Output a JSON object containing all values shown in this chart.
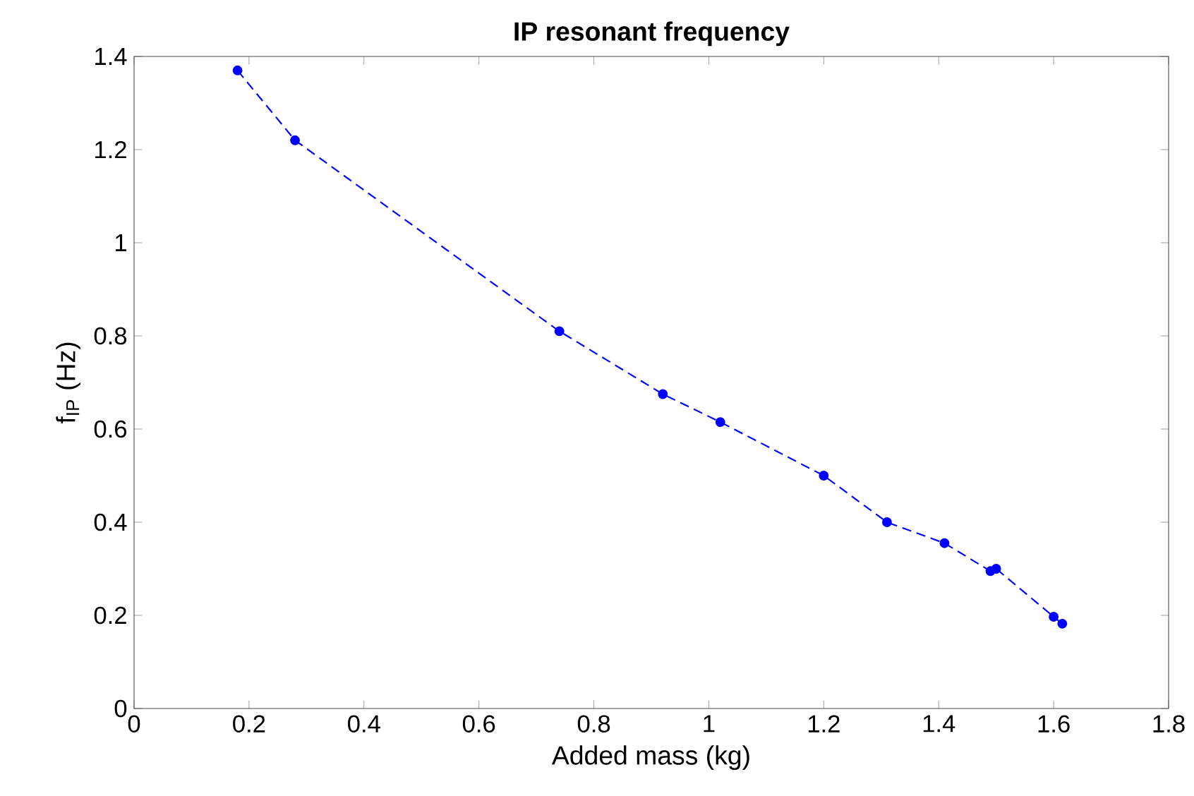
{
  "chart_data": {
    "type": "line",
    "title": "IP resonant frequency",
    "xlabel": "Added mass (kg)",
    "ylabel": "f$_{IP}$ (Hz)",
    "x": [
      0.18,
      0.28,
      0.74,
      0.92,
      1.02,
      1.2,
      1.31,
      1.41,
      1.49,
      1.5,
      1.6,
      1.615
    ],
    "series": [
      {
        "color": "#0000ff",
        "values": [
          1.37,
          1.22,
          0.81,
          0.675,
          0.615,
          0.5,
          0.4,
          0.355,
          0.295,
          0.3,
          0.197,
          0.182
        ]
      }
    ],
    "xlim": [
      0,
      1.8
    ],
    "ylim": [
      0,
      1.4
    ],
    "xticks": [
      0,
      0.2,
      0.4,
      0.6,
      0.8,
      1,
      1.2,
      1.4,
      1.6,
      1.8
    ],
    "yticks": [
      0,
      0.2,
      0.4,
      0.6,
      0.8,
      1,
      1.2,
      1.4
    ],
    "marker": "circle",
    "line_style": "dashed"
  }
}
